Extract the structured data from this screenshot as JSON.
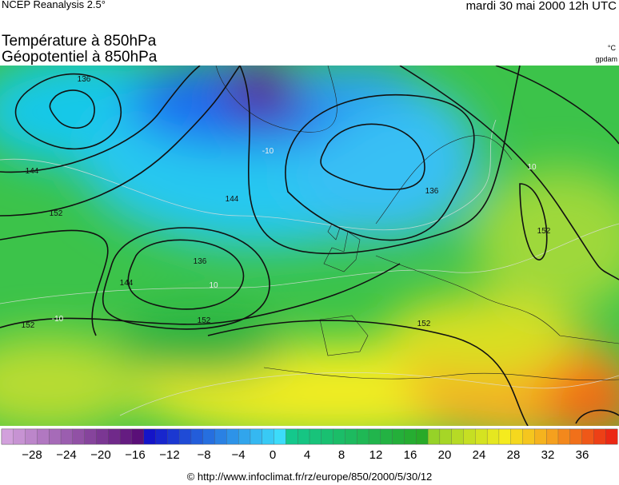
{
  "header": {
    "source": "NCEP Reanalysis 2.5°",
    "date": "mardi 30 mai 2000 12h UTC"
  },
  "titles": {
    "line1": "Température à 850hPa",
    "line2": "Géopotentiel à 850hPa"
  },
  "units": {
    "temperature": "°C",
    "geopotential": "gpdam"
  },
  "map": {
    "contour_labels": [
      "136",
      "144",
      "152",
      "144",
      "136",
      "136",
      "144",
      "152",
      "152",
      "152",
      "152",
      "-10",
      "10",
      "-10",
      "10"
    ]
  },
  "colorbar": {
    "labels": [
      "−28",
      "−24",
      "−20",
      "−16",
      "−12",
      "−8",
      "−4",
      "0",
      "4",
      "8",
      "12",
      "16",
      "20",
      "24",
      "28",
      "32",
      "36"
    ]
  },
  "footer": "© http://www.infoclimat.fr/rz/europe/850/2000/5/30/12"
}
